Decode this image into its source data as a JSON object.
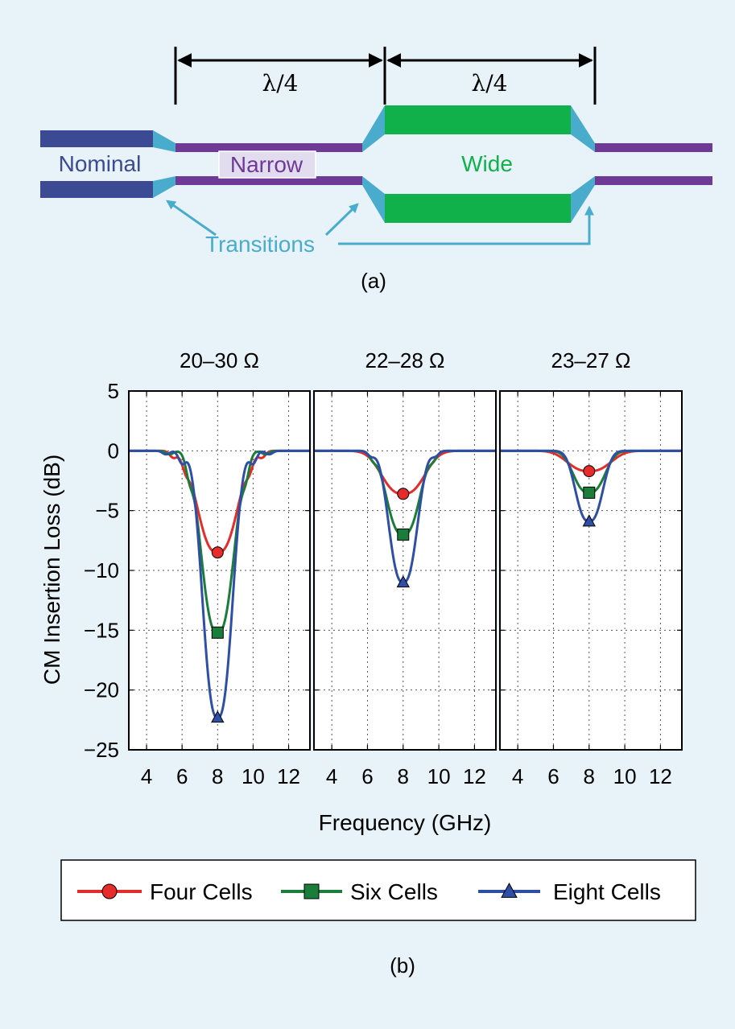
{
  "diagram": {
    "dim_left": "λ/4",
    "dim_right": "λ/4",
    "label_nominal": "Nominal",
    "label_narrow": "Narrow",
    "label_wide": "Wide",
    "label_transitions": "Transitions",
    "caption": "(a)",
    "colors": {
      "nominal": "#3b4a92",
      "narrow": "#6f3a96",
      "wide": "#10b04b",
      "transition": "#4aaccd"
    }
  },
  "chart_caption": "(b)",
  "chart_data": {
    "type": "line",
    "xlabel": "Frequency (GHz)",
    "ylabel": "CM Insertion Loss (dB)",
    "xlim": [
      3,
      13.2
    ],
    "ylim": [
      -25,
      5
    ],
    "xticks": [
      4,
      6,
      8,
      10,
      12
    ],
    "yticks": [
      5,
      0,
      -5,
      -10,
      -15,
      -20,
      -25
    ],
    "ytick_labels": [
      "5",
      "0",
      "−5",
      "−10",
      "−15",
      "−20",
      "−25"
    ],
    "grid": true,
    "legend_position": "bottom",
    "panels": [
      {
        "title": "20–30 Ω",
        "series": [
          {
            "name": "Four Cells",
            "color": "#e62b2b",
            "marker": "circle",
            "center": 8,
            "min": -8.5,
            "halfwidth": 1.4,
            "ripple": [
              [
                5.5,
                -0.5
              ],
              [
                6.2,
                -0.8
              ],
              [
                9.8,
                -0.8
              ],
              [
                10.5,
                -0.5
              ]
            ],
            "marker_x": 8,
            "marker_y": -8.5
          },
          {
            "name": "Six Cells",
            "color": "#1a7d3a",
            "marker": "square",
            "center": 8,
            "min": -15.2,
            "halfwidth": 1.15,
            "ripple": [
              [
                5.3,
                -0.3
              ],
              [
                6.4,
                -1.3
              ],
              [
                9.6,
                -1.3
              ],
              [
                10.7,
                -0.3
              ]
            ],
            "marker_x": 8,
            "marker_y": -15.2
          },
          {
            "name": "Eight Cells",
            "color": "#2f4fa6",
            "marker": "triangle",
            "center": 8,
            "min": -22.3,
            "halfwidth": 1.05,
            "ripple": [
              [
                5.1,
                -0.3
              ],
              [
                6.0,
                -1.0
              ],
              [
                10.0,
                -1.0
              ],
              [
                10.9,
                -0.3
              ]
            ],
            "marker_x": 8,
            "marker_y": -22.3
          }
        ]
      },
      {
        "title": "22–28 Ω",
        "series": [
          {
            "name": "Four Cells",
            "color": "#e62b2b",
            "marker": "circle",
            "center": 8,
            "min": -3.6,
            "halfwidth": 1.5,
            "ripple": [],
            "marker_x": 8,
            "marker_y": -3.6
          },
          {
            "name": "Six Cells",
            "color": "#1a7d3a",
            "marker": "square",
            "center": 8,
            "min": -7.0,
            "halfwidth": 1.15,
            "ripple": [
              [
                6.3,
                -0.5
              ],
              [
                9.7,
                -0.5
              ]
            ],
            "marker_x": 8,
            "marker_y": -7.0
          },
          {
            "name": "Eight Cells",
            "color": "#2f4fa6",
            "marker": "triangle",
            "center": 8,
            "min": -11.0,
            "halfwidth": 1.0,
            "ripple": [
              [
                6.2,
                -0.4
              ],
              [
                9.8,
                -0.4
              ]
            ],
            "marker_x": 8,
            "marker_y": -11.0
          }
        ]
      },
      {
        "title": "23–27 Ω",
        "series": [
          {
            "name": "Four Cells",
            "color": "#e62b2b",
            "marker": "circle",
            "center": 8,
            "min": -1.7,
            "halfwidth": 1.5,
            "ripple": [],
            "marker_x": 8,
            "marker_y": -1.7
          },
          {
            "name": "Six Cells",
            "color": "#1a7d3a",
            "marker": "square",
            "center": 8,
            "min": -3.5,
            "halfwidth": 1.1,
            "ripple": [],
            "marker_x": 8,
            "marker_y": -3.5
          },
          {
            "name": "Eight Cells",
            "color": "#2f4fa6",
            "marker": "triangle",
            "center": 8,
            "min": -5.9,
            "halfwidth": 0.95,
            "ripple": [],
            "marker_x": 8,
            "marker_y": -5.9
          }
        ]
      }
    ],
    "legend": [
      {
        "name": "Four Cells",
        "color": "#e62b2b",
        "marker": "circle"
      },
      {
        "name": "Six Cells",
        "color": "#1a7d3a",
        "marker": "square"
      },
      {
        "name": "Eight Cells",
        "color": "#2f4fa6",
        "marker": "triangle"
      }
    ]
  }
}
